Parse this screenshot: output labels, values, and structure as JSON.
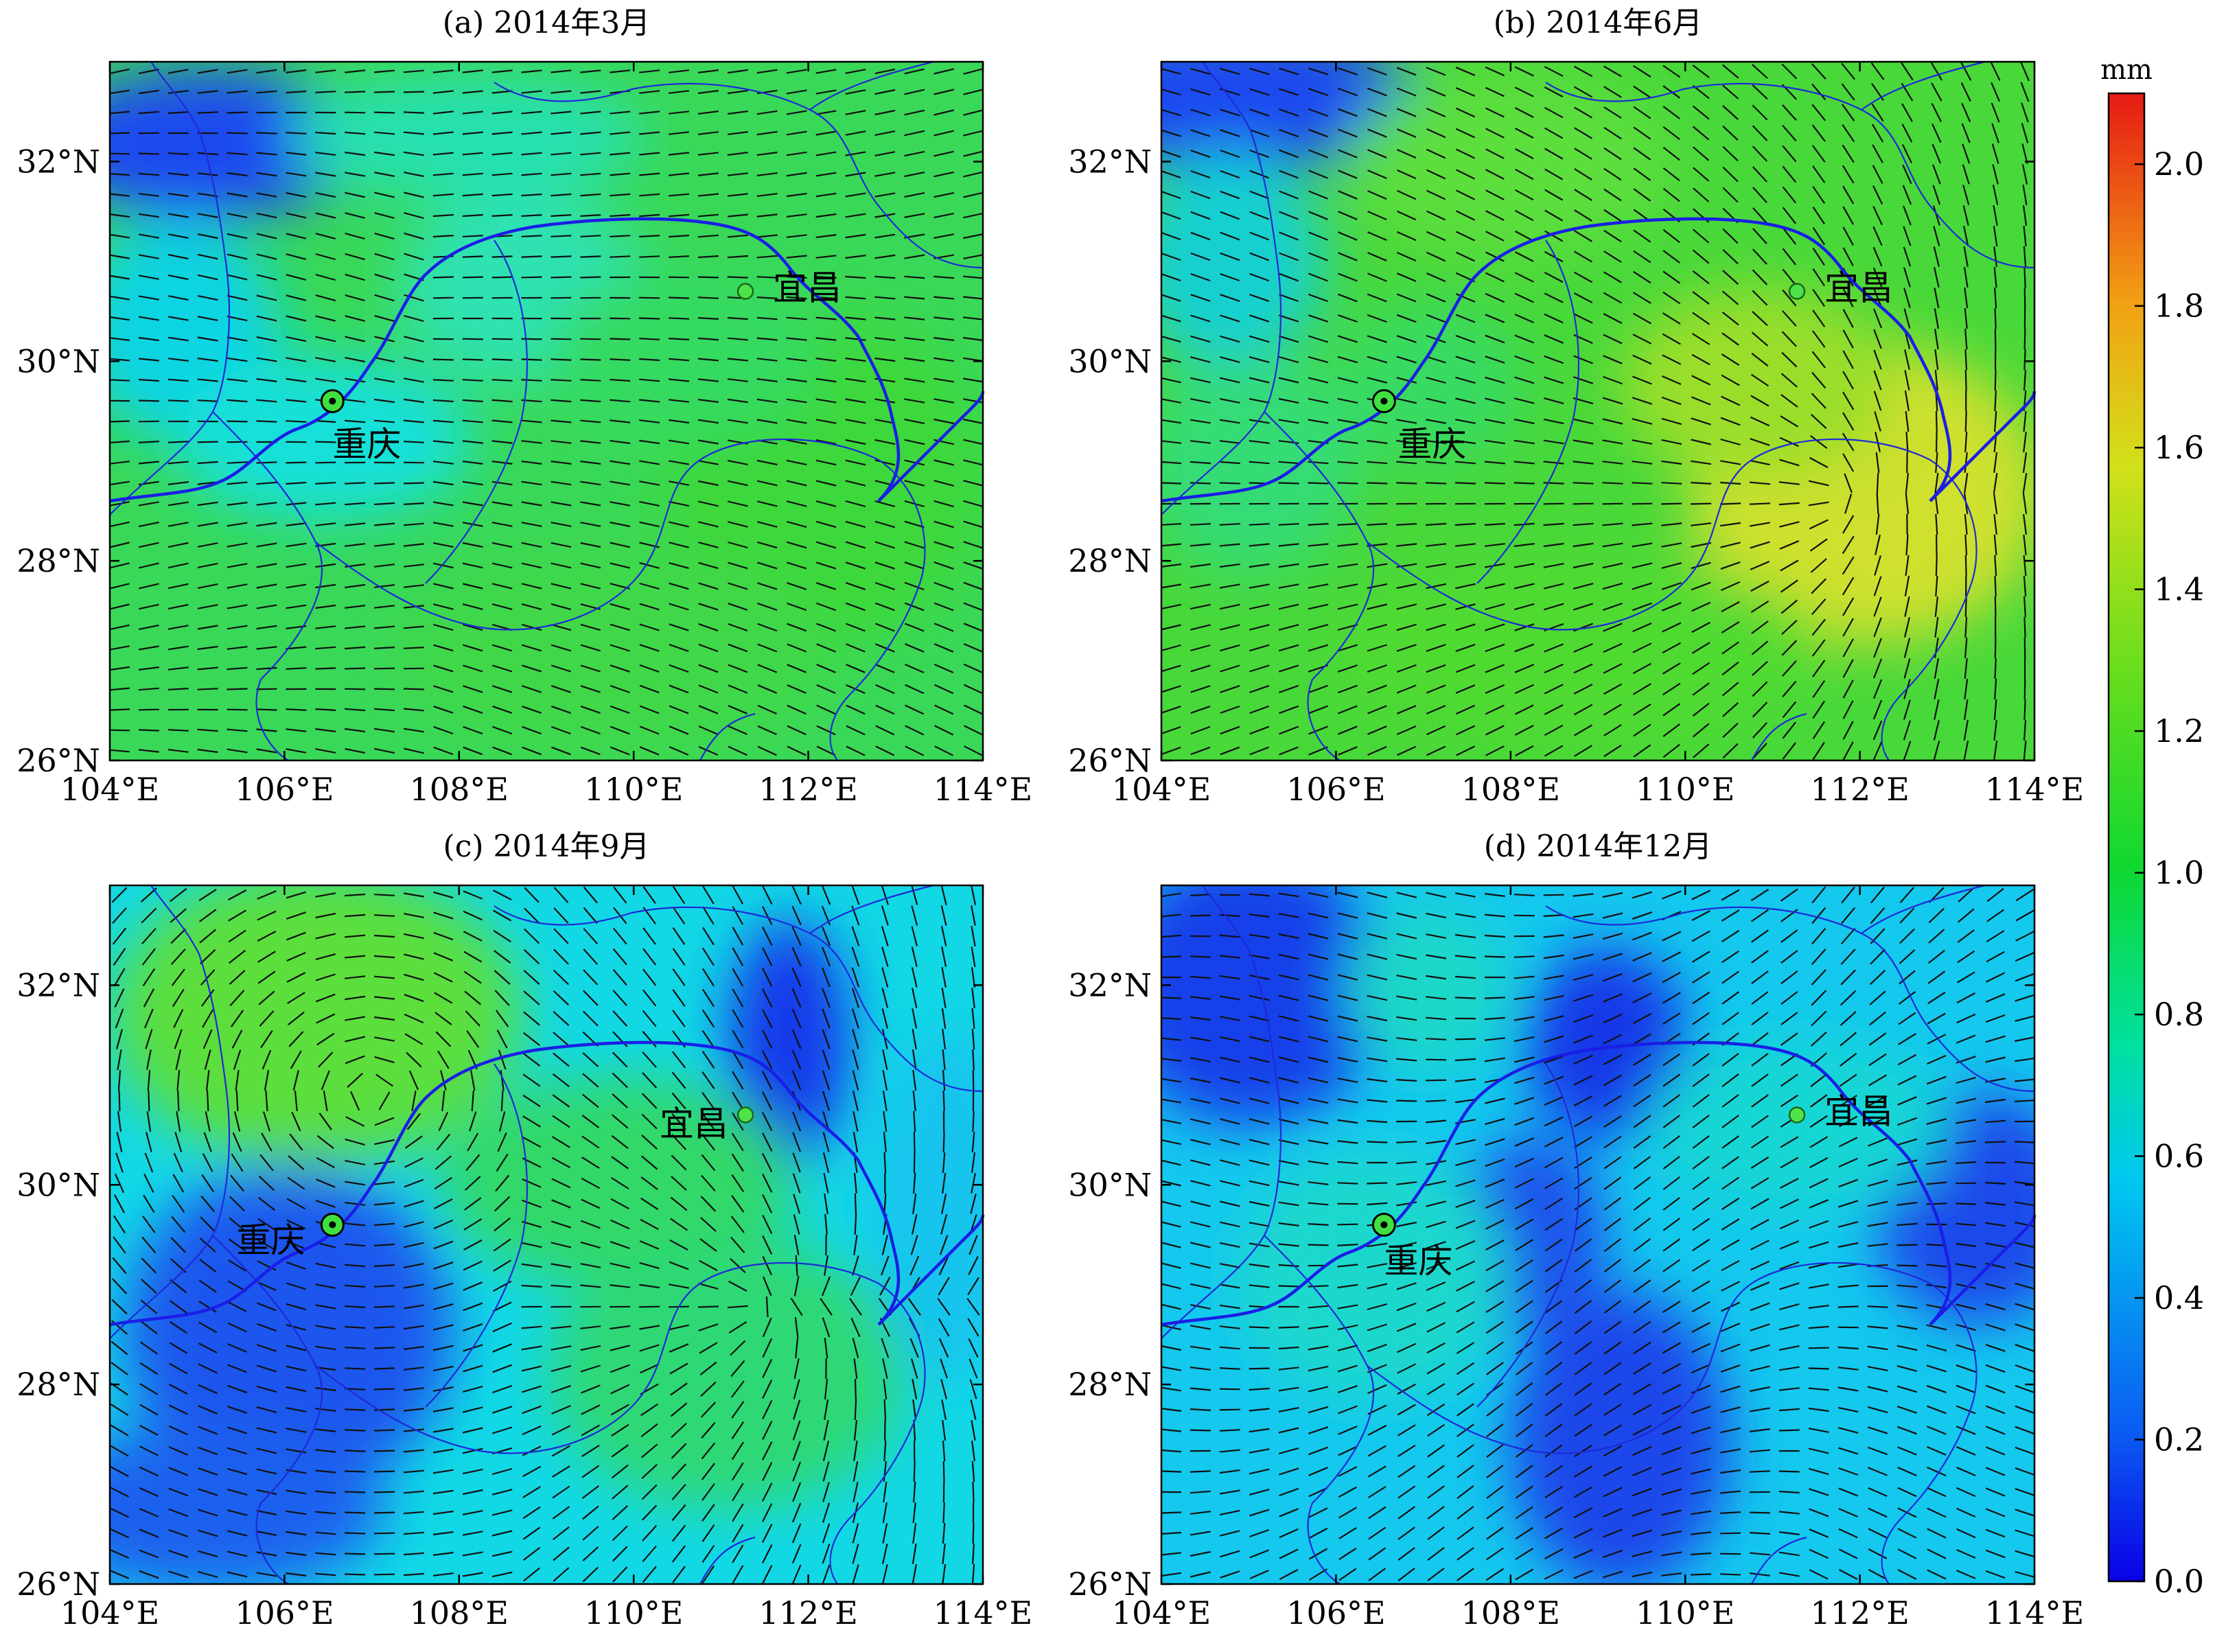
{
  "figure": {
    "colorbar": {
      "unit": "mm",
      "min": 0.0,
      "max": 2.1,
      "ticks": [
        "0.0",
        "0.2",
        "0.4",
        "0.6",
        "0.8",
        "1.0",
        "1.2",
        "1.4",
        "1.6",
        "1.8",
        "2.0"
      ],
      "colors": [
        "#0a00e6",
        "#0b5cf2",
        "#00c8f0",
        "#00e0a0",
        "#10d830",
        "#6ede1c",
        "#d2e01a",
        "#f2a014",
        "#f05010",
        "#e61a14"
      ]
    },
    "axes": {
      "lon_range": [
        104,
        114
      ],
      "lat_range": [
        26,
        33
      ],
      "lon_ticks": [
        "104°E",
        "106°E",
        "108°E",
        "110°E",
        "112°E",
        "114°E"
      ],
      "lat_ticks": [
        "26°N",
        "28°N",
        "30°N",
        "32°N"
      ]
    },
    "cities": [
      {
        "name": "重庆",
        "lon": 106.55,
        "lat": 29.6
      },
      {
        "name": "宜昌",
        "lon": 111.28,
        "lat": 30.7
      }
    ],
    "panels": [
      {
        "title": "(a) 2014年3月",
        "mean_value": 0.85,
        "range": [
          0.25,
          1.1
        ]
      },
      {
        "title": "(b) 2014年6月",
        "mean_value": 1.1,
        "range": [
          0.3,
          1.55
        ]
      },
      {
        "title": "(c) 2014年9月",
        "mean_value": 0.55,
        "range": [
          0.15,
          1.05
        ]
      },
      {
        "title": "(d) 2014年12月",
        "mean_value": 0.45,
        "range": [
          0.15,
          0.75
        ]
      }
    ]
  }
}
